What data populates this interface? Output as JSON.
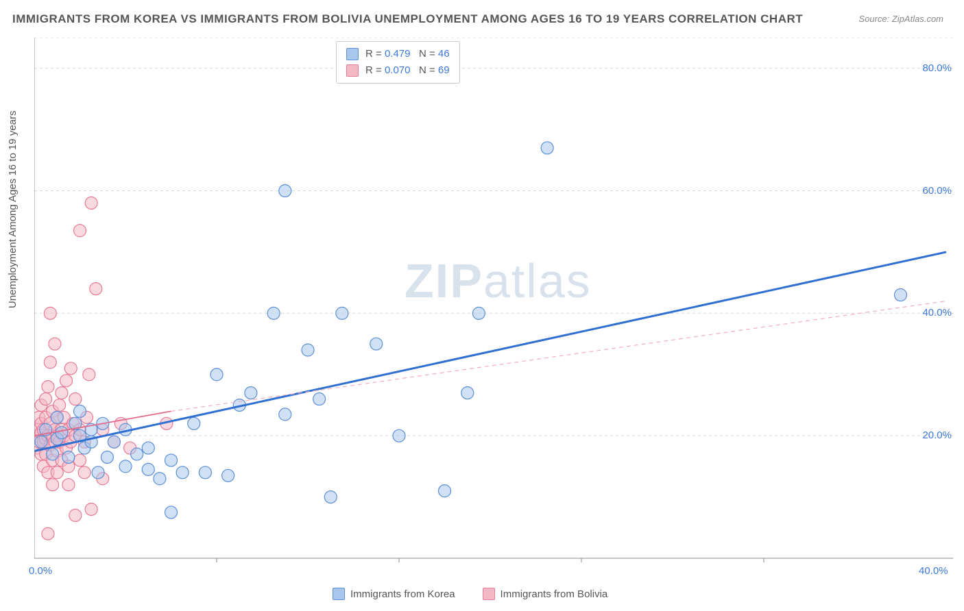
{
  "title": "IMMIGRANTS FROM KOREA VS IMMIGRANTS FROM BOLIVIA UNEMPLOYMENT AMONG AGES 16 TO 19 YEARS CORRELATION CHART",
  "source": "Source: ZipAtlas.com",
  "ylabel": "Unemployment Among Ages 16 to 19 years",
  "watermark_a": "ZIP",
  "watermark_b": "atlas",
  "chart": {
    "type": "scatter",
    "background_color": "#ffffff",
    "grid_color": "#d9d9d9",
    "axis_color": "#888888",
    "xlim": [
      0,
      40
    ],
    "ylim": [
      0,
      85
    ],
    "x_ticks": [
      0,
      40
    ],
    "x_tick_labels": [
      "0.0%",
      "40.0%"
    ],
    "x_tick_color": "#3b78d8",
    "y_ticks": [
      20,
      40,
      60,
      80
    ],
    "y_tick_labels": [
      "20.0%",
      "40.0%",
      "60.0%",
      "80.0%"
    ],
    "y_tick_color": "#3b78d8",
    "y_grid_lines": [
      20,
      40,
      60,
      80,
      85
    ],
    "x_minor_lines": [
      8,
      16,
      24,
      32
    ],
    "marker_radius": 9,
    "marker_opacity": 0.55,
    "marker_stroke_width": 1.2,
    "series": [
      {
        "name": "Immigrants from Korea",
        "color_fill": "#a9c6ec",
        "color_stroke": "#5b8fd6",
        "R": "0.479",
        "N": "46",
        "trend_color": "#2f6fd1",
        "trend_width": 3,
        "trend_dash": "",
        "trend": {
          "x1": 0,
          "y1": 17.5,
          "x2": 40,
          "y2": 50
        },
        "points": [
          [
            0.3,
            19
          ],
          [
            0.5,
            21
          ],
          [
            0.8,
            17
          ],
          [
            1,
            19.5
          ],
          [
            1,
            23
          ],
          [
            1.2,
            20.5
          ],
          [
            1.5,
            16.5
          ],
          [
            1.8,
            22
          ],
          [
            2,
            20
          ],
          [
            2,
            24
          ],
          [
            2.2,
            18
          ],
          [
            2.5,
            19
          ],
          [
            2.5,
            21
          ],
          [
            2.8,
            14
          ],
          [
            3,
            22
          ],
          [
            3.2,
            16.5
          ],
          [
            3.5,
            19
          ],
          [
            4,
            21
          ],
          [
            4,
            15
          ],
          [
            4.5,
            17
          ],
          [
            5,
            18
          ],
          [
            5,
            14.5
          ],
          [
            5.5,
            13
          ],
          [
            6,
            16
          ],
          [
            6,
            7.5
          ],
          [
            6.5,
            14
          ],
          [
            7,
            22
          ],
          [
            7.5,
            14
          ],
          [
            8,
            30
          ],
          [
            8.5,
            13.5
          ],
          [
            9,
            25
          ],
          [
            9.5,
            27
          ],
          [
            10.5,
            40
          ],
          [
            11,
            23.5
          ],
          [
            11,
            60
          ],
          [
            12,
            34
          ],
          [
            12.5,
            26
          ],
          [
            13,
            10
          ],
          [
            13.5,
            40
          ],
          [
            15,
            35
          ],
          [
            16,
            20
          ],
          [
            18,
            11
          ],
          [
            19,
            27
          ],
          [
            19.5,
            40
          ],
          [
            22.5,
            67
          ],
          [
            38,
            43
          ]
        ]
      },
      {
        "name": "Immigrants from Bolivia",
        "color_fill": "#f4b9c6",
        "color_stroke": "#e77a95",
        "R": "0.070",
        "N": "69",
        "trend_color": "#e06a88",
        "trend_width": 1.8,
        "trend_dash": "",
        "trend": {
          "x1": 0,
          "y1": 20,
          "x2": 6,
          "y2": 24
        },
        "trend_ext_color": "#f0aeb9",
        "trend_ext_dash": "6 5",
        "trend_ext": {
          "x1": 6,
          "y1": 24,
          "x2": 40,
          "y2": 42
        },
        "points": [
          [
            0.1,
            18
          ],
          [
            0.1,
            20
          ],
          [
            0.2,
            21
          ],
          [
            0.2,
            19
          ],
          [
            0.2,
            23
          ],
          [
            0.3,
            17
          ],
          [
            0.3,
            20.5
          ],
          [
            0.3,
            22
          ],
          [
            0.3,
            25
          ],
          [
            0.4,
            19
          ],
          [
            0.4,
            21
          ],
          [
            0.4,
            15
          ],
          [
            0.5,
            26
          ],
          [
            0.5,
            19.5
          ],
          [
            0.5,
            23
          ],
          [
            0.5,
            17
          ],
          [
            0.6,
            20
          ],
          [
            0.6,
            28
          ],
          [
            0.6,
            14
          ],
          [
            0.6,
            4
          ],
          [
            0.7,
            22
          ],
          [
            0.7,
            18.5
          ],
          [
            0.7,
            32
          ],
          [
            0.7,
            40
          ],
          [
            0.8,
            20
          ],
          [
            0.8,
            16
          ],
          [
            0.8,
            24
          ],
          [
            0.8,
            12
          ],
          [
            0.9,
            21
          ],
          [
            0.9,
            19
          ],
          [
            0.9,
            35
          ],
          [
            1,
            23
          ],
          [
            1,
            17.5
          ],
          [
            1,
            14
          ],
          [
            1,
            20
          ],
          [
            1.1,
            25
          ],
          [
            1.1,
            19
          ],
          [
            1.2,
            21
          ],
          [
            1.2,
            27
          ],
          [
            1.2,
            16
          ],
          [
            1.3,
            20
          ],
          [
            1.3,
            23
          ],
          [
            1.4,
            18
          ],
          [
            1.4,
            29
          ],
          [
            1.5,
            21
          ],
          [
            1.5,
            12
          ],
          [
            1.5,
            15
          ],
          [
            1.6,
            19
          ],
          [
            1.6,
            31
          ],
          [
            1.7,
            22
          ],
          [
            1.8,
            20
          ],
          [
            1.8,
            7
          ],
          [
            1.8,
            26
          ],
          [
            2,
            21
          ],
          [
            2,
            16
          ],
          [
            2,
            53.5
          ],
          [
            2.2,
            19
          ],
          [
            2.2,
            14
          ],
          [
            2.3,
            23
          ],
          [
            2.4,
            30
          ],
          [
            2.5,
            58
          ],
          [
            2.5,
            8
          ],
          [
            2.7,
            44
          ],
          [
            3,
            21
          ],
          [
            3,
            13
          ],
          [
            3.5,
            19
          ],
          [
            3.8,
            22
          ],
          [
            4.2,
            18
          ],
          [
            5.8,
            22
          ]
        ]
      }
    ],
    "legend_top": {
      "R_label": "R =",
      "N_label": "N =",
      "value_color": "#3b78d8",
      "text_color": "#555555"
    },
    "legend_bottom": {
      "items": [
        "Immigrants from Korea",
        "Immigrants from Bolivia"
      ]
    }
  }
}
